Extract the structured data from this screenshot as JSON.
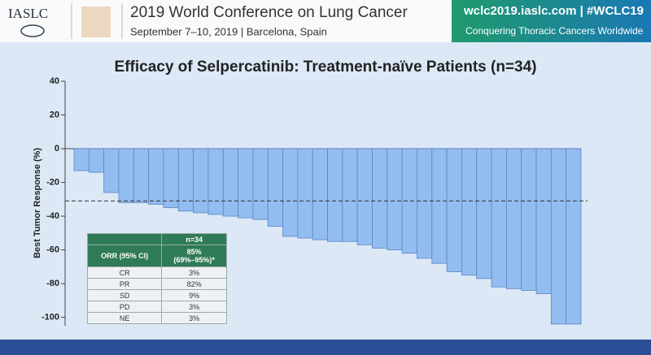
{
  "header": {
    "logo": "IASLC",
    "title": "2019 World Conference on Lung Cancer",
    "subtitle": "September 7–10, 2019 | Barcelona, Spain",
    "website": "wclc2019.iaslc.com | #WCLC19",
    "tagline": "Conquering Thoracic Cancers Worldwide"
  },
  "chart_data": {
    "type": "waterfall",
    "title": "Efficacy of Selpercatinib: Treatment-naïve Patients (n=34)",
    "y_label": "Best Tumor Response (%)",
    "values": [
      -13,
      -14,
      -26,
      -32,
      -32,
      -33,
      -35,
      -37,
      -38,
      -39,
      -40,
      -41,
      -42,
      -46,
      -52,
      -53,
      -54,
      -55,
      -55,
      -57,
      -59,
      -60,
      -62,
      -65,
      -68,
      -73,
      -75,
      -77,
      -82,
      -83,
      -84,
      -86,
      -104,
      -104
    ],
    "color": "#93bdf0",
    "ylim": [
      -105,
      40
    ],
    "yticks": [
      40,
      20,
      0,
      -20,
      -40,
      -60,
      -80,
      -100
    ],
    "reference_line": -31
  },
  "table": {
    "n_header": "n=34",
    "orr_label": "ORR (95% CI)",
    "orr_value": "85%",
    "orr_ci": "(69%–95%)*",
    "rows": [
      [
        "CR",
        "3%"
      ],
      [
        "PR",
        "82%"
      ],
      [
        "SD",
        "9%"
      ],
      [
        "PD",
        "3%"
      ],
      [
        "NE",
        "3%"
      ]
    ]
  }
}
